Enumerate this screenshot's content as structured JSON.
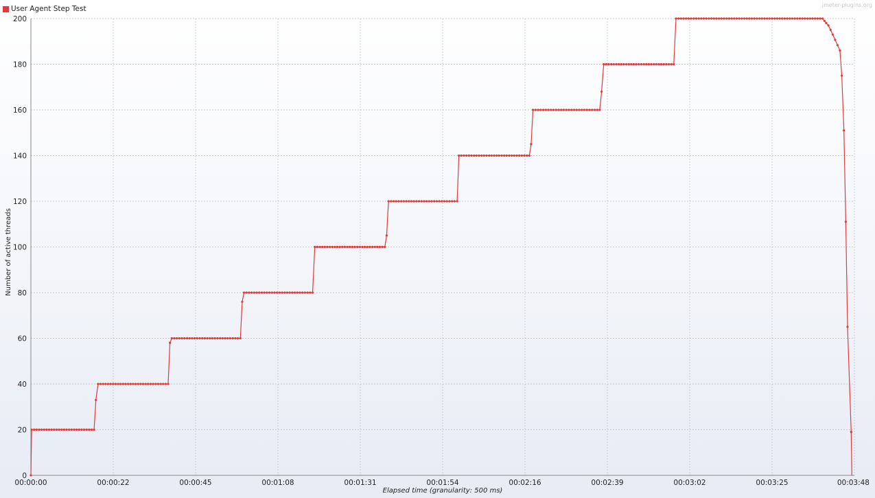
{
  "chart_data": {
    "type": "line",
    "xlabel": "Elapsed time (granularity: 500 ms)",
    "ylabel": "Number of active threads",
    "watermark": "jmeter-plugins.org",
    "xlim": [
      0,
      228
    ],
    "ylim": [
      0,
      200
    ],
    "x_ticks": [
      {
        "value": 0,
        "label": "00:00:00"
      },
      {
        "value": 22.8,
        "label": "00:00:22"
      },
      {
        "value": 45.6,
        "label": "00:00:45"
      },
      {
        "value": 68.4,
        "label": "00:01:08"
      },
      {
        "value": 91.2,
        "label": "00:01:31"
      },
      {
        "value": 114,
        "label": "00:01:54"
      },
      {
        "value": 136.8,
        "label": "00:02:16"
      },
      {
        "value": 159.6,
        "label": "00:02:39"
      },
      {
        "value": 182.4,
        "label": "00:03:02"
      },
      {
        "value": 205.2,
        "label": "00:03:25"
      },
      {
        "value": 228,
        "label": "00:03:48"
      }
    ],
    "y_ticks": [
      0,
      20,
      40,
      60,
      80,
      100,
      120,
      140,
      160,
      180,
      200
    ],
    "grid": true,
    "legend_position": "top-left",
    "series": [
      {
        "name": "User Agent Step Test",
        "color": "#e03a3a",
        "points": [
          [
            0,
            0
          ],
          [
            0.2,
            20
          ],
          [
            17.5,
            20
          ],
          [
            18,
            33
          ],
          [
            18.6,
            40
          ],
          [
            38,
            40
          ],
          [
            38.5,
            58
          ],
          [
            39,
            60
          ],
          [
            58,
            60
          ],
          [
            58.5,
            76
          ],
          [
            59,
            80
          ],
          [
            78,
            80
          ],
          [
            78.6,
            100
          ],
          [
            98,
            100
          ],
          [
            98.5,
            105
          ],
          [
            99,
            120
          ],
          [
            118,
            120
          ],
          [
            118.5,
            140
          ],
          [
            138,
            140
          ],
          [
            138.5,
            145
          ],
          [
            139,
            160
          ],
          [
            157.5,
            160
          ],
          [
            158,
            168
          ],
          [
            158.6,
            180
          ],
          [
            178,
            180
          ],
          [
            178.6,
            200
          ],
          [
            219.2,
            200
          ],
          [
            219.7,
            199
          ],
          [
            220.2,
            198
          ],
          [
            220.8,
            197
          ],
          [
            221.4,
            195
          ],
          [
            222,
            193
          ],
          [
            224,
            186
          ],
          [
            224.5,
            175
          ],
          [
            225.1,
            151
          ],
          [
            225.6,
            111
          ],
          [
            226.1,
            65
          ],
          [
            227.1,
            19
          ],
          [
            227.3,
            0
          ]
        ]
      }
    ]
  }
}
